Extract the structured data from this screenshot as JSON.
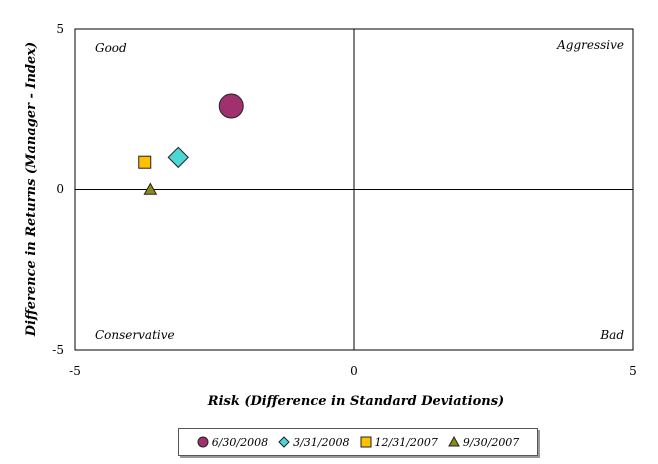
{
  "chart_data": {
    "type": "scatter",
    "title": "",
    "xlabel": "Risk (Difference in Standard Deviations)",
    "ylabel": "Difference in Returns (Manager - Index)",
    "xlim": [
      -5,
      5
    ],
    "ylim": [
      -5,
      5
    ],
    "x_ticks": [
      "-5",
      "0",
      "5"
    ],
    "y_ticks": [
      "5",
      "0",
      "-5"
    ],
    "grid": false,
    "legend_position": "bottom",
    "quadrant_labels": {
      "top_left": "Good",
      "top_right": "Aggressive",
      "bottom_left": "Conservative",
      "bottom_right": "Bad"
    },
    "series": [
      {
        "name": "6/30/2008",
        "marker": "circle",
        "color": "#a0306e",
        "x": -2.2,
        "y": 2.6
      },
      {
        "name": "3/31/2008",
        "marker": "diamond",
        "color": "#4dd6d6",
        "x": -3.15,
        "y": 1.0
      },
      {
        "name": "12/31/2007",
        "marker": "square",
        "color": "#ffc000",
        "x": -3.75,
        "y": 0.85
      },
      {
        "name": "9/30/2007",
        "marker": "triangle",
        "color": "#8a8a1a",
        "x": -3.65,
        "y": 0.0
      }
    ]
  }
}
